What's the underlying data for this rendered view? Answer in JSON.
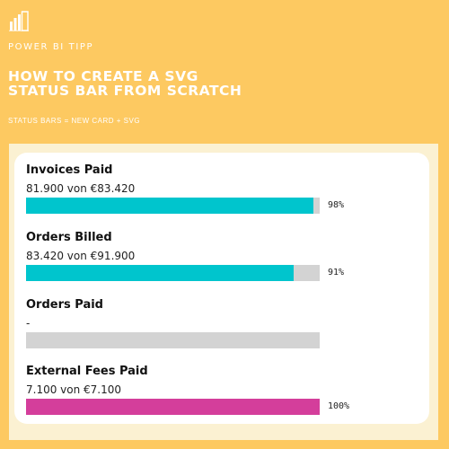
{
  "branding": {
    "name": "POWER BI TIPP",
    "logo_icon": "power-bi-logo-icon"
  },
  "header": {
    "title_line1": "HOW TO CREATE A SVG",
    "title_line2": "STATUS BAR FROM SCRATCH",
    "subtitle": "STATUS BARS  = NEW CARD + SVG"
  },
  "colors": {
    "background": "#fdc961",
    "track": "#d3d3d3",
    "teal": "#00c5cd",
    "magenta": "#d43e9b"
  },
  "status_bars": [
    {
      "title": "Invoices Paid",
      "value_text": "81.900 von €83.420",
      "percent_text": "98%",
      "fill_fraction": 0.98,
      "fill_color": "#00c5cd"
    },
    {
      "title": "Orders Billed",
      "value_text": "83.420 von €91.900",
      "percent_text": "91%",
      "fill_fraction": 0.91,
      "fill_color": "#00c5cd"
    },
    {
      "title": "Orders Paid",
      "value_text": "-",
      "percent_text": "",
      "fill_fraction": 0,
      "fill_color": "#00c5cd"
    },
    {
      "title": "External Fees Paid",
      "value_text": "7.100 von €7.100",
      "percent_text": "100%",
      "fill_fraction": 1.0,
      "fill_color": "#d43e9b"
    }
  ]
}
